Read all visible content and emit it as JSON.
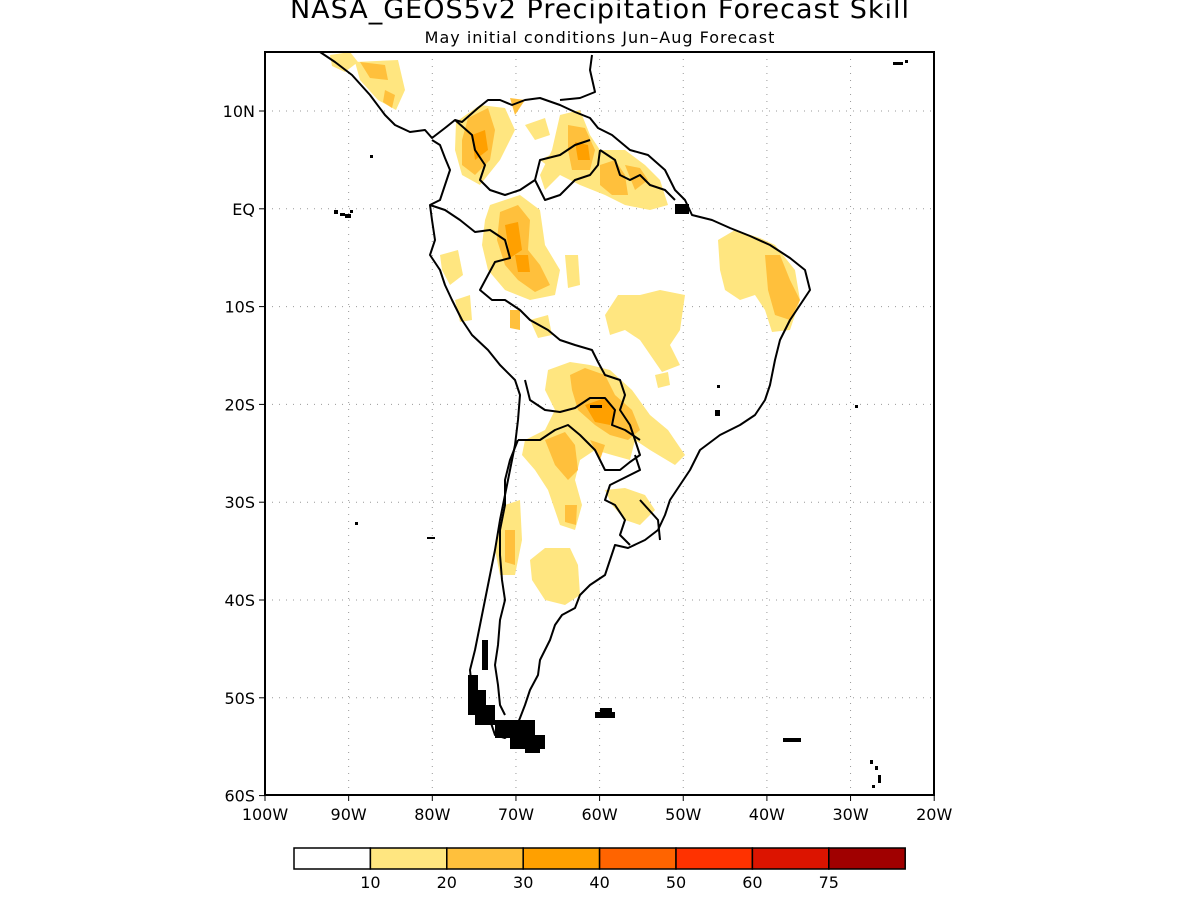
{
  "header": {
    "title": "NASA_GEOS5v2 Precipitation Forecast Skill",
    "subtitle": "May initial conditions  Jun–Aug Forecast"
  },
  "map": {
    "region": "South America",
    "lon_range": [
      -100,
      -20
    ],
    "lat_range": [
      -60,
      15
    ],
    "lat_ticks": [
      "10N",
      "EQ",
      "10S",
      "20S",
      "30S",
      "40S",
      "50S",
      "60S"
    ],
    "lon_ticks": [
      "100W",
      "90W",
      "80W",
      "70W",
      "60W",
      "50W",
      "40W",
      "30W",
      "20W"
    ],
    "grid": true
  },
  "legend": {
    "labels": [
      "10",
      "20",
      "30",
      "40",
      "50",
      "60",
      "75"
    ],
    "colors": [
      "#ffffff",
      "#ffe680",
      "#ffc03c",
      "#ffa000",
      "#ff6400",
      "#ff3200",
      "#dc1400",
      "#a00000"
    ]
  }
}
